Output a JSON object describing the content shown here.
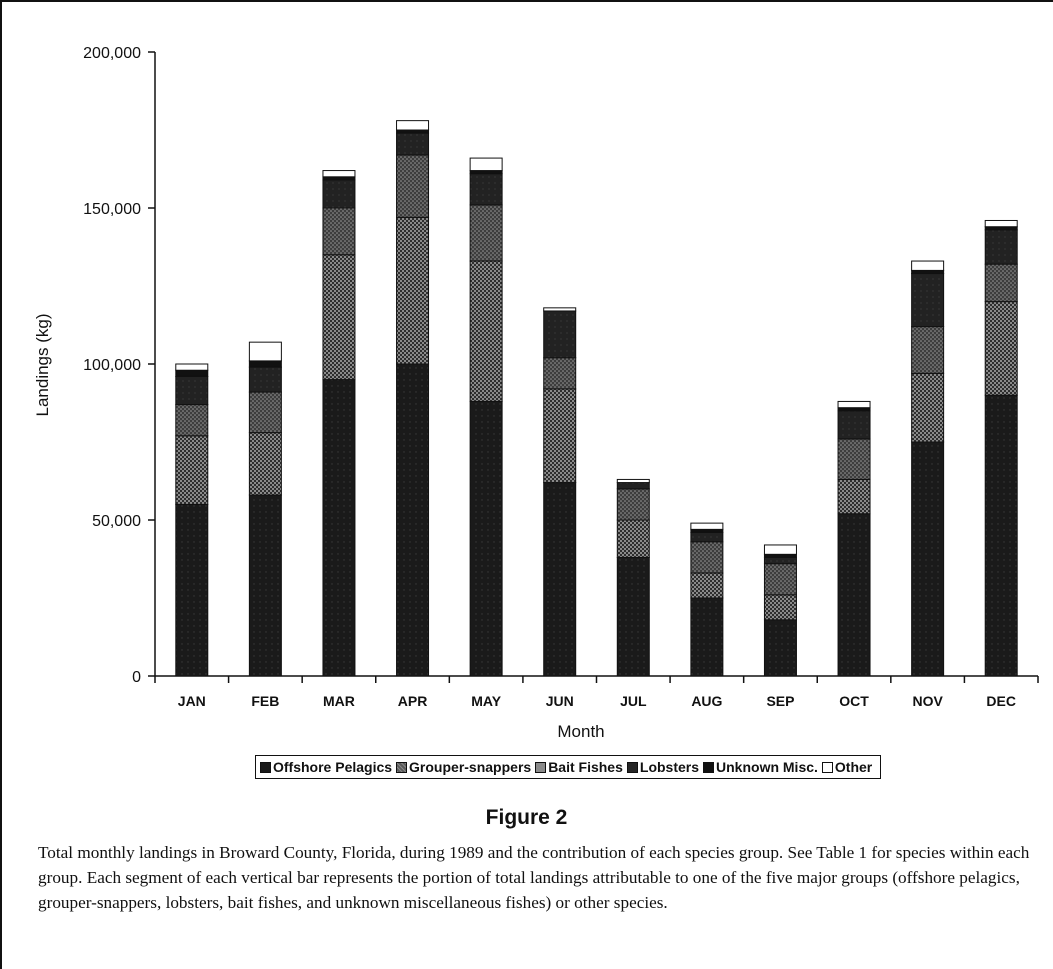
{
  "chart_data": {
    "type": "bar",
    "stacked": true,
    "categories": [
      "JAN",
      "FEB",
      "MAR",
      "APR",
      "MAY",
      "JUN",
      "JUL",
      "AUG",
      "SEP",
      "OCT",
      "NOV",
      "DEC"
    ],
    "xlabel": "Month",
    "ylabel": "Landings (kg)",
    "ylim": [
      0,
      200000
    ],
    "yticks": [
      0,
      50000,
      100000,
      150000,
      200000
    ],
    "ytick_labels": [
      "0",
      "50,000",
      "100,000",
      "150,000",
      "200,000"
    ],
    "grid": false,
    "legend_position": "bottom",
    "series": [
      {
        "name": "Offshore Pelagics",
        "color": "#1a1a1a",
        "values": [
          55000,
          58000,
          95000,
          100000,
          88000,
          62000,
          38000,
          25000,
          18000,
          52000,
          75000,
          90000
        ]
      },
      {
        "name": "Grouper-snappers",
        "color": "#5a5a5a",
        "values": [
          22000,
          20000,
          40000,
          47000,
          45000,
          30000,
          12000,
          8000,
          8000,
          11000,
          22000,
          30000
        ]
      },
      {
        "name": "Bait Fishes",
        "color": "#8c8c8c",
        "values": [
          10000,
          13000,
          15000,
          20000,
          18000,
          10000,
          10000,
          10000,
          10000,
          13000,
          15000,
          12000
        ]
      },
      {
        "name": "Lobsters",
        "color": "#262626",
        "values": [
          9000,
          8000,
          9000,
          7000,
          10000,
          15000,
          2000,
          3000,
          2000,
          9000,
          17000,
          11000
        ]
      },
      {
        "name": "Unknown Misc.",
        "color": "#111111",
        "values": [
          2000,
          2000,
          1000,
          1000,
          1000,
          0,
          0,
          1000,
          1000,
          1000,
          1000,
          1000
        ]
      },
      {
        "name": "Other",
        "color": "#ffffff",
        "values": [
          2000,
          6000,
          2000,
          3000,
          4000,
          1000,
          1000,
          2000,
          3000,
          2000,
          3000,
          2000
        ]
      }
    ]
  },
  "figure_title": "Figure 2",
  "caption": "Total monthly landings in Broward County, Florida, during 1989 and the contribution of each species group. See Table 1 for species within each group. Each segment of each vertical bar represents the portion of total landings attributable to one of the five major groups (offshore pelagics, grouper-snappers, lobsters, bait fishes, and unknown miscellaneous fishes) or other species."
}
